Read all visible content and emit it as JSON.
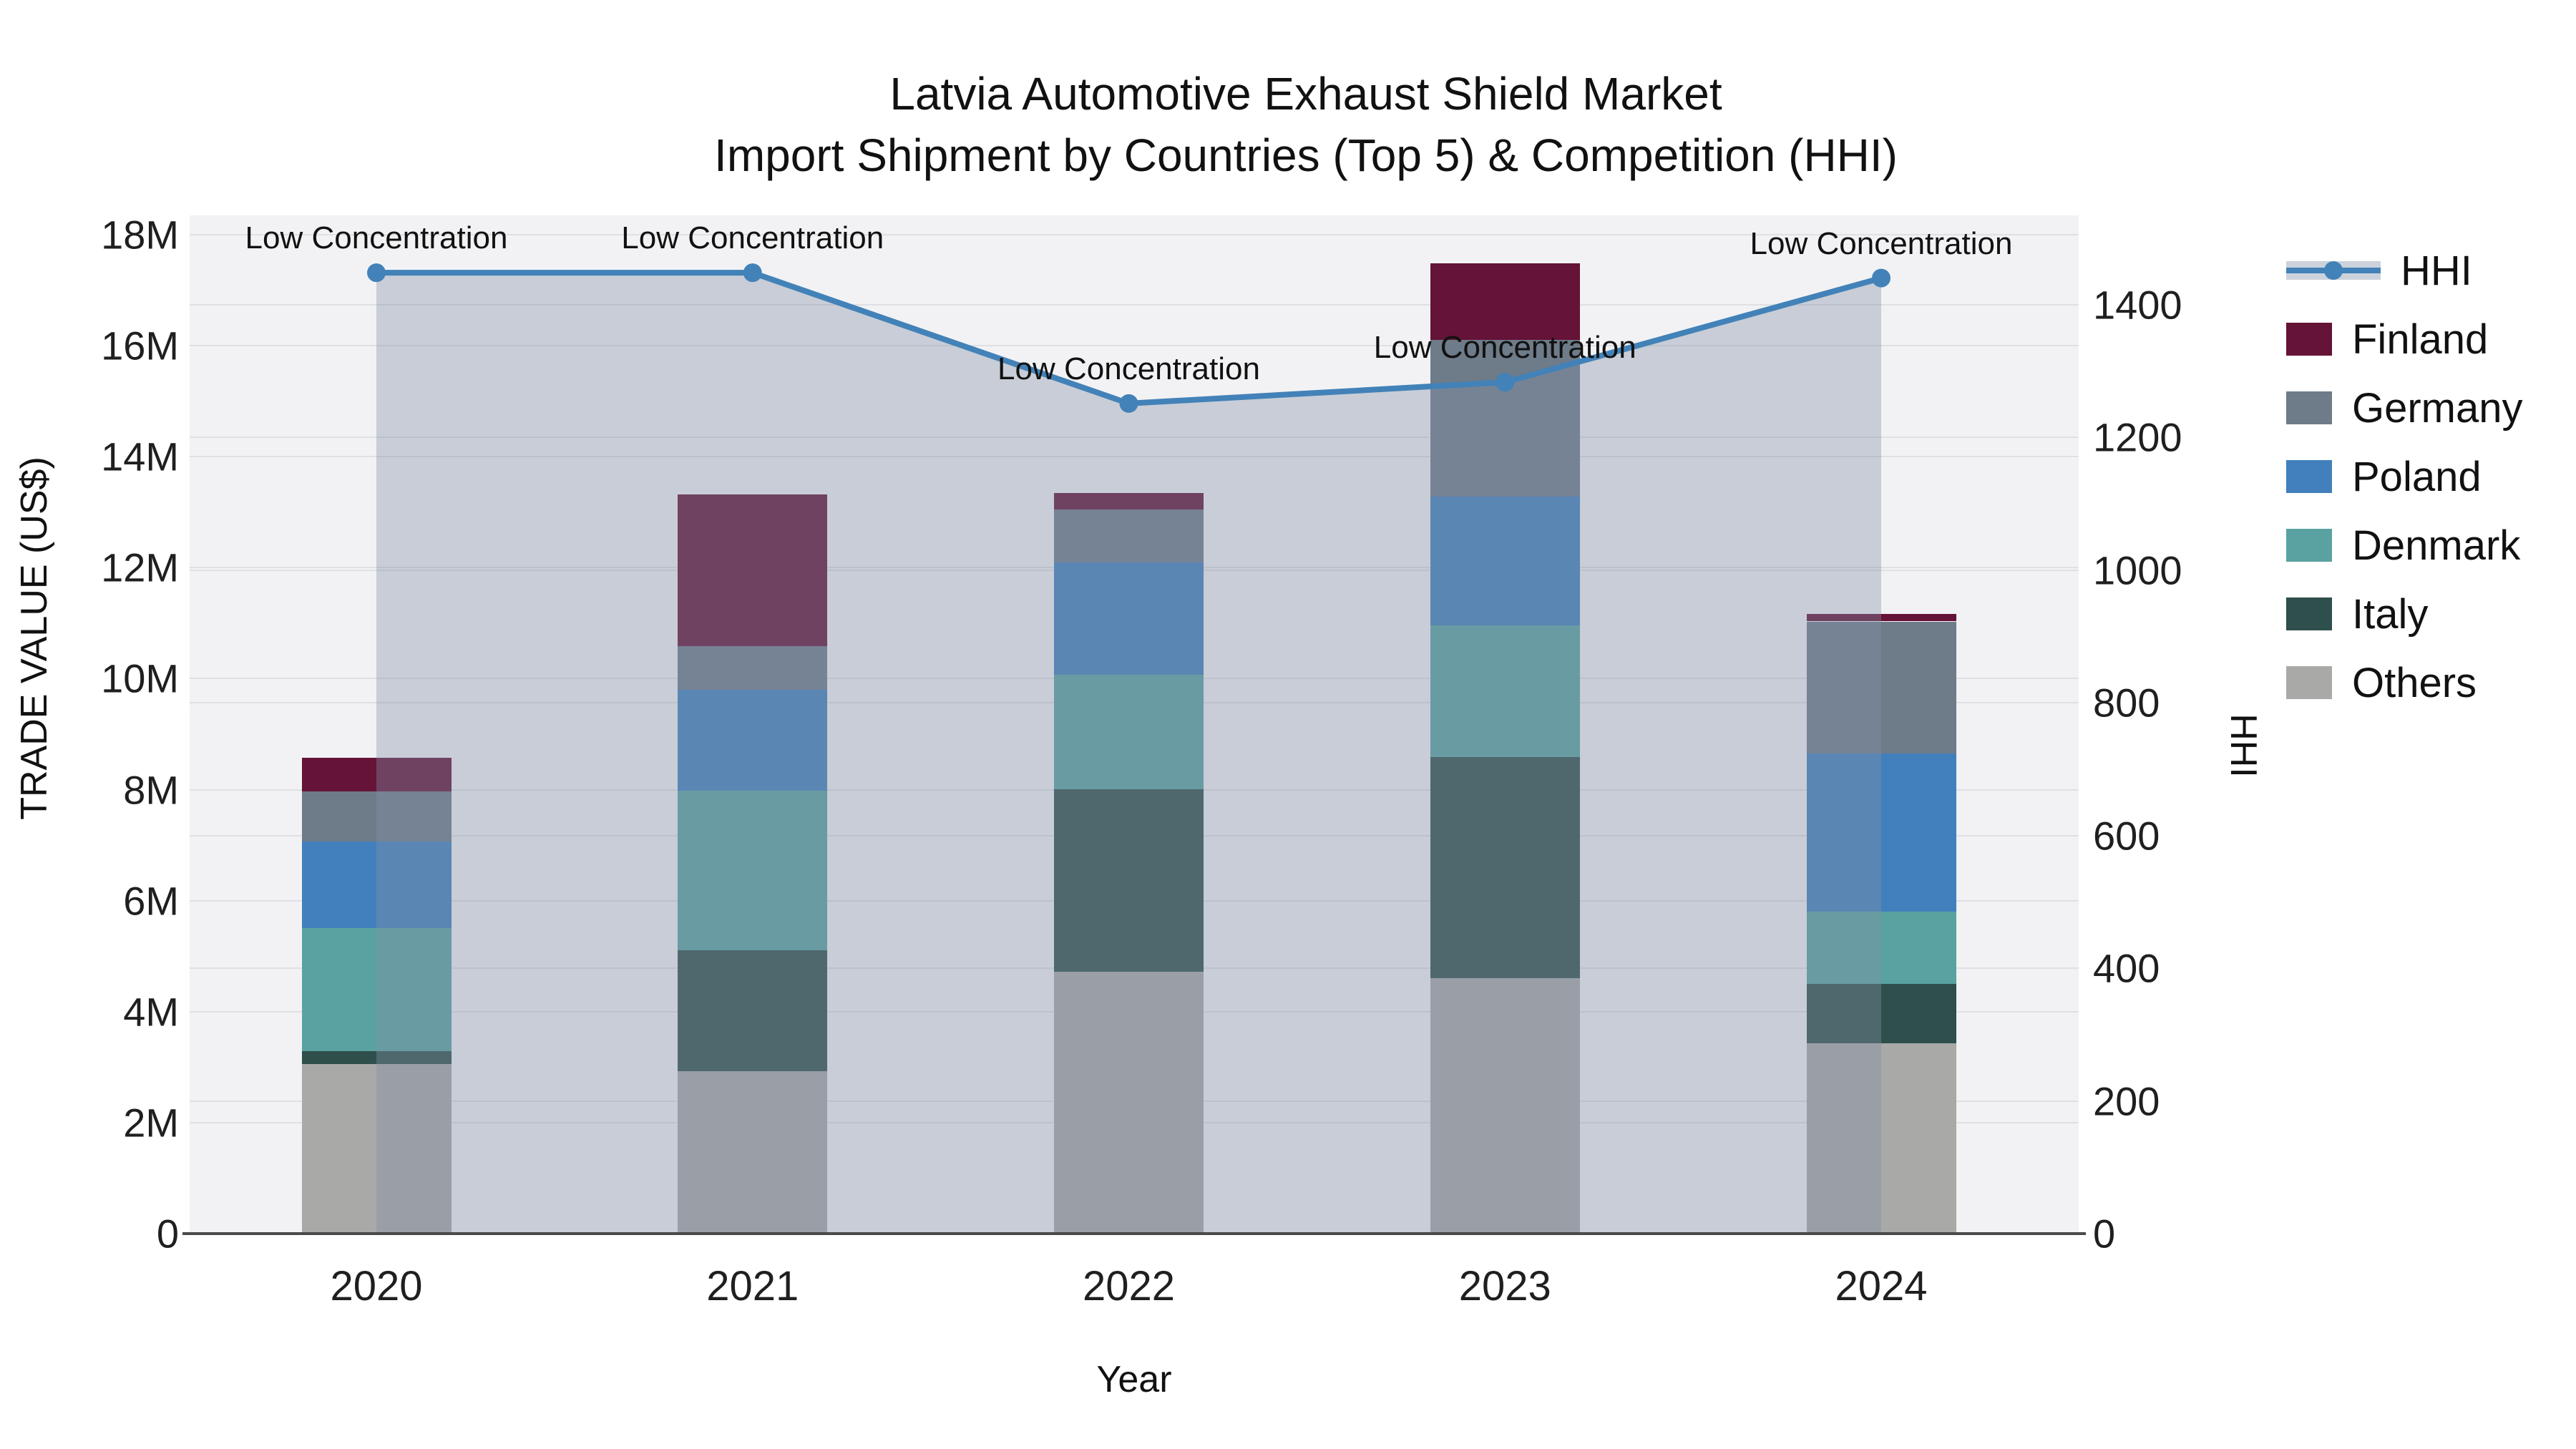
{
  "title": {
    "line1": "Latvia Automotive Exhaust Shield Market",
    "line2": "Import Shipment by Countries (Top 5) & Competition (HHI)"
  },
  "axes": {
    "y_left": {
      "title": "TRADE VALUE (US$)",
      "tick_labels": [
        "0",
        "2M",
        "4M",
        "6M",
        "8M",
        "10M",
        "12M",
        "14M",
        "16M",
        "18M"
      ],
      "tick_values_m": [
        0,
        2,
        4,
        6,
        8,
        10,
        12,
        14,
        16,
        18
      ]
    },
    "y_right": {
      "title": "HHI",
      "tick_labels": [
        "0",
        "200",
        "400",
        "600",
        "800",
        "1000",
        "1200",
        "1400"
      ],
      "tick_values": [
        0,
        200,
        400,
        600,
        800,
        1000,
        1200,
        1400
      ]
    },
    "x": {
      "title": "Year"
    }
  },
  "legend": [
    {
      "label": "HHI",
      "kind": "line",
      "color": "#4282b8"
    },
    {
      "label": "Finland",
      "kind": "swatch",
      "color": "#651337"
    },
    {
      "label": "Germany",
      "kind": "swatch",
      "color": "#6e7b89"
    },
    {
      "label": "Poland",
      "kind": "swatch",
      "color": "#4180bc"
    },
    {
      "label": "Denmark",
      "kind": "swatch",
      "color": "#5aa2a1"
    },
    {
      "label": "Italy",
      "kind": "swatch",
      "color": "#2e4f4b"
    },
    {
      "label": "Others",
      "kind": "swatch",
      "color": "#a9a9a7"
    }
  ],
  "chart_data": {
    "type": "bar",
    "subtype": "stacked bars + HHI line on secondary axis with shaded area",
    "categories": [
      "2020",
      "2021",
      "2022",
      "2023",
      "2024"
    ],
    "bar_unit": "million US$",
    "series": [
      {
        "name": "Others",
        "color": "#a9a9a7",
        "values": [
          3.06,
          2.93,
          4.72,
          4.6,
          3.43
        ]
      },
      {
        "name": "Italy",
        "color": "#2e4f4b",
        "values": [
          0.23,
          2.17,
          3.29,
          3.99,
          1.07
        ]
      },
      {
        "name": "Denmark",
        "color": "#5aa2a1",
        "values": [
          2.22,
          2.88,
          2.06,
          2.37,
          1.3
        ]
      },
      {
        "name": "Poland",
        "color": "#4180bc",
        "values": [
          1.56,
          1.82,
          2.03,
          2.32,
          2.85
        ]
      },
      {
        "name": "Germany",
        "color": "#6e7b89",
        "values": [
          0.9,
          0.78,
          0.95,
          2.83,
          2.38
        ]
      },
      {
        "name": "Finland",
        "color": "#651337",
        "values": [
          0.61,
          2.74,
          0.3,
          1.37,
          0.14
        ]
      }
    ],
    "totals_m": [
      8.58,
      13.32,
      13.35,
      17.48,
      11.17
    ],
    "stack_order_bottom_to_top": [
      "Others",
      "Italy",
      "Denmark",
      "Poland",
      "Germany",
      "Finland"
    ],
    "hhi": {
      "name": "HHI",
      "axis": "right",
      "color": "#4282b8",
      "area_fill": "rgba(132,145,167,0.38)",
      "values": [
        1448,
        1448,
        1251,
        1283,
        1440
      ],
      "point_annotations": [
        "Low Concentration",
        "Low Concentration",
        "Low Concentration",
        "Low Concentration",
        "Low Concentration"
      ]
    },
    "title": "Latvia Automotive Exhaust Shield Market — Import Shipment by Countries (Top 5) & Competition (HHI)",
    "xlabel": "Year",
    "ylabel": "TRADE VALUE (US$)",
    "ylabel_right": "HHI",
    "ylim_left_m": [
      0,
      18.35
    ],
    "ylim_right": [
      0,
      1515
    ],
    "grid": true,
    "legend_position": "right"
  }
}
